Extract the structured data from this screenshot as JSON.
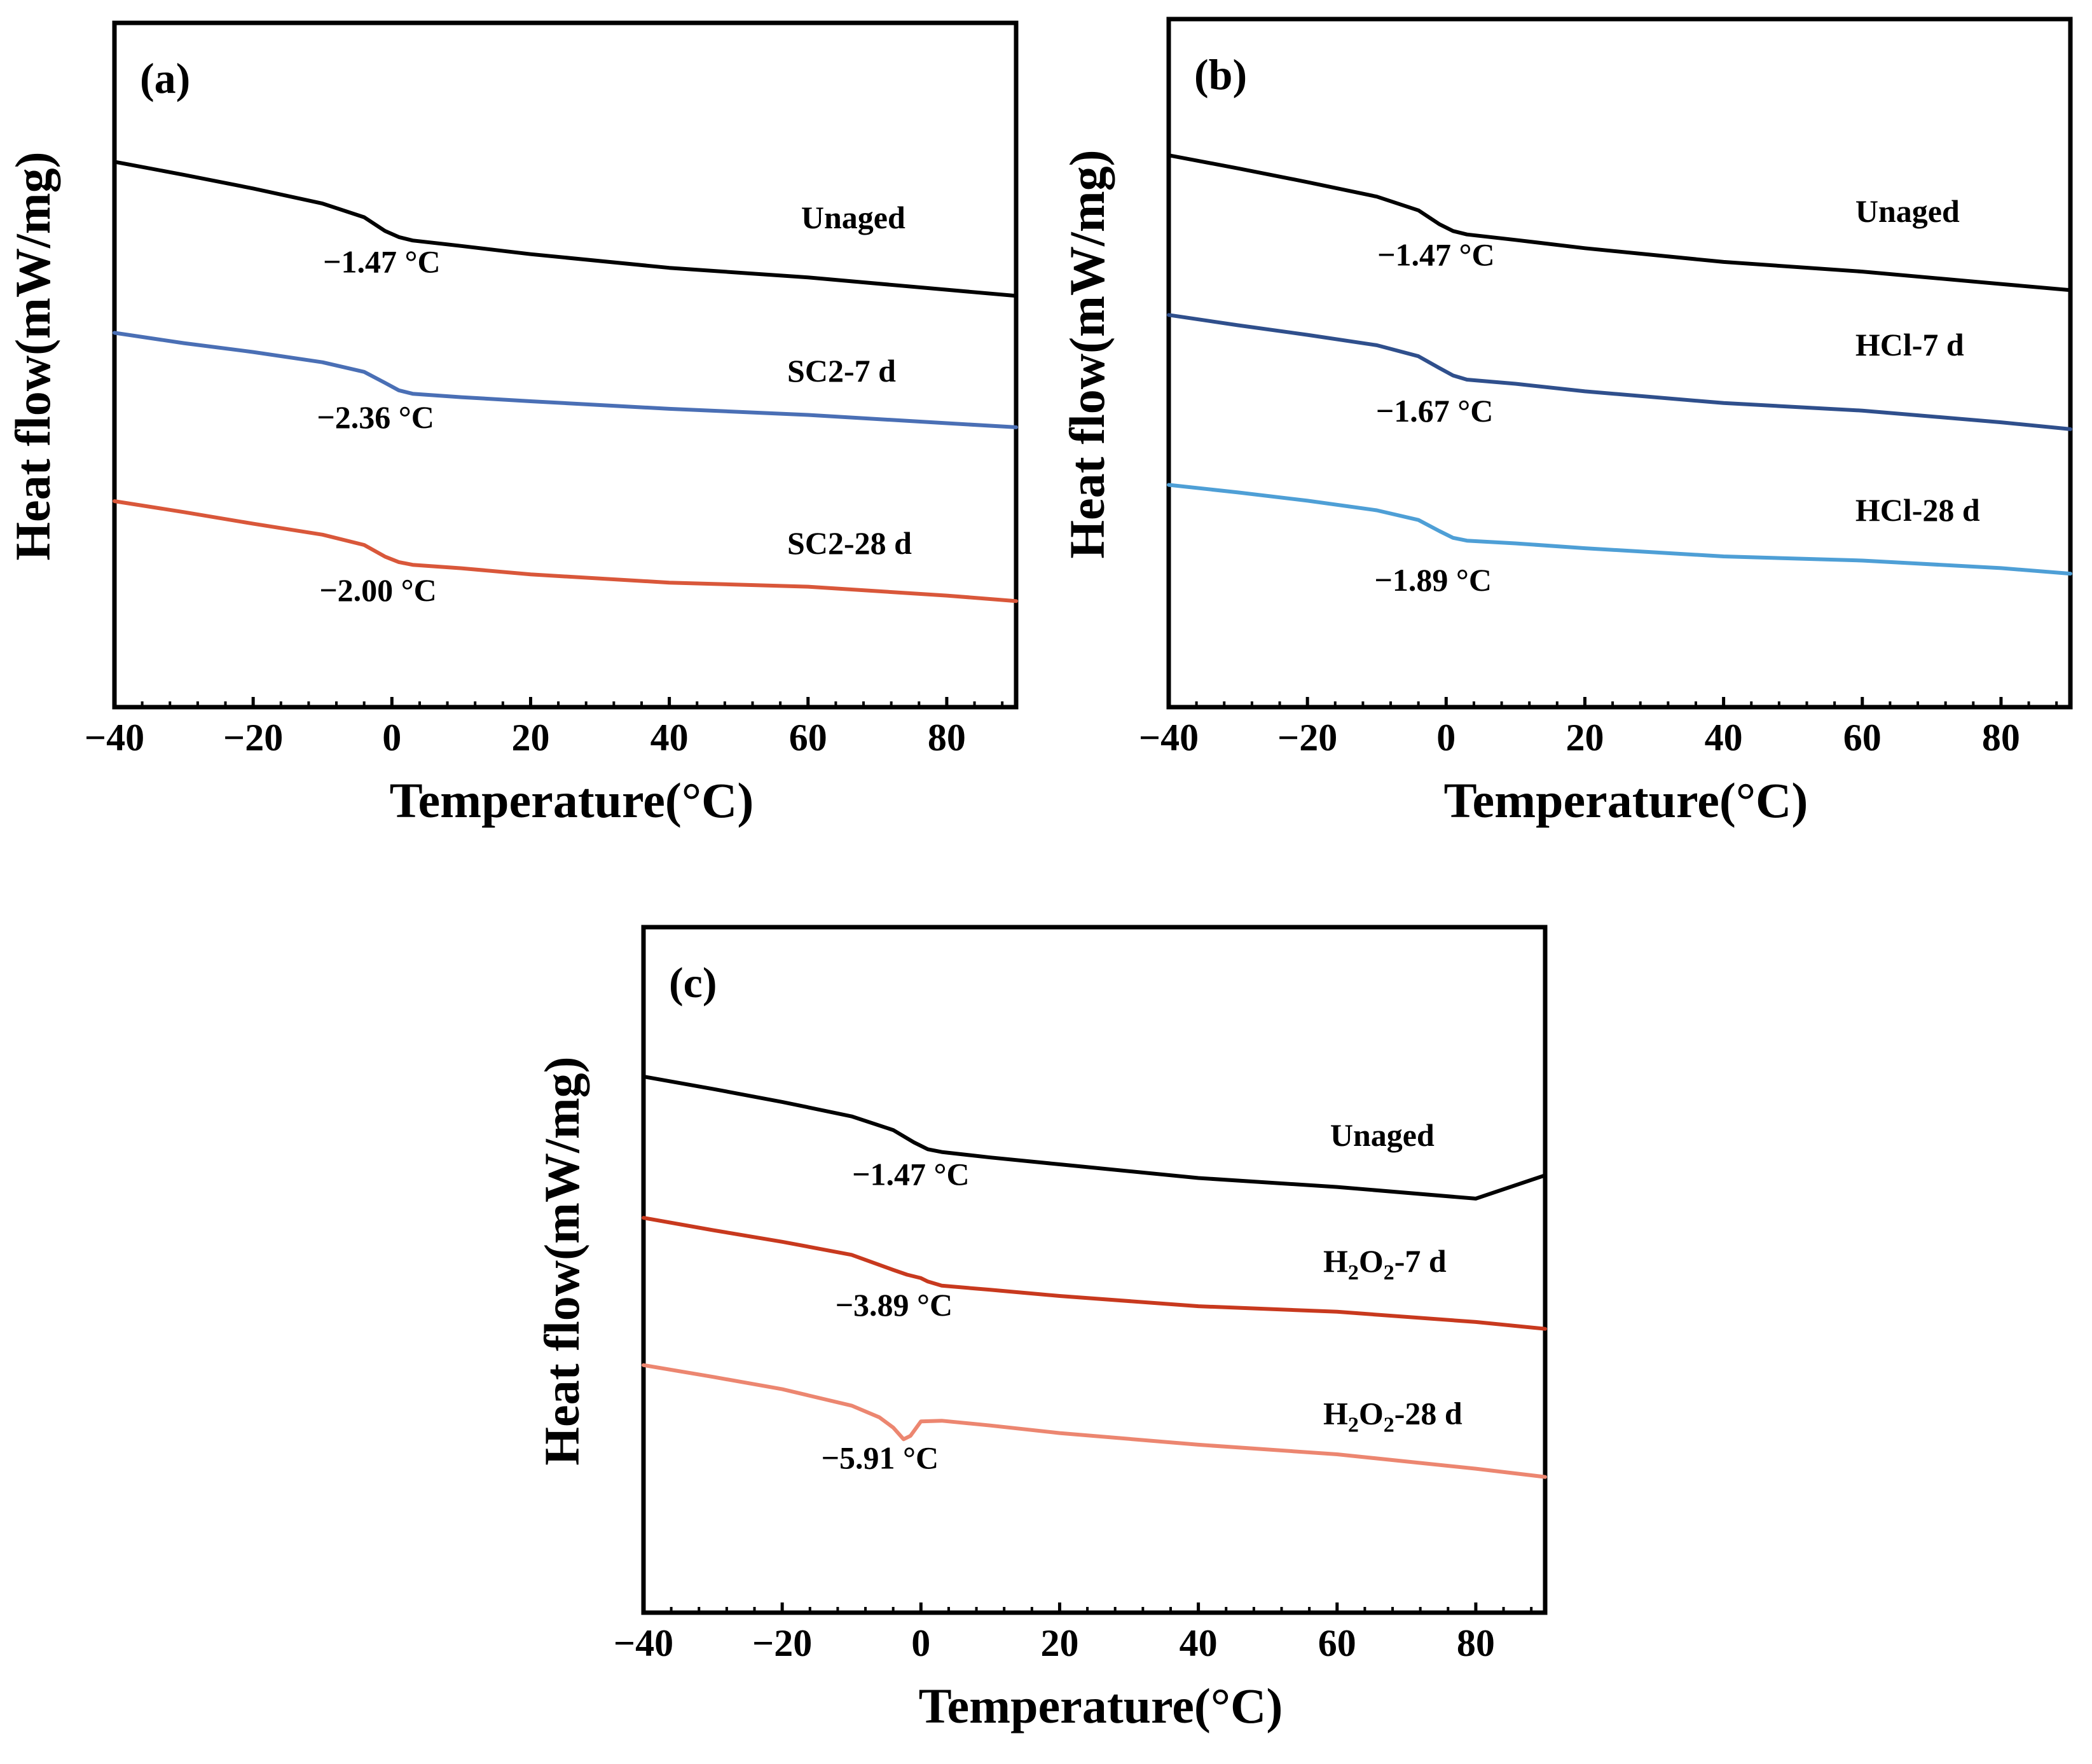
{
  "chart_data": [
    {
      "type": "line",
      "panel_label": "(a)",
      "xlabel": "Temperature(°C)",
      "ylabel": "Heat flow(mW/mg)",
      "xlim": [
        -40,
        90
      ],
      "xticks": [
        -40,
        -20,
        0,
        20,
        40,
        60,
        80
      ],
      "xtick_labels": [
        "−40",
        "−20",
        "0",
        "20",
        "40",
        "60",
        "80"
      ],
      "ylim": [
        0,
        100
      ],
      "series": [
        {
          "name": "Unaged",
          "label": "Unaged",
          "color": "#000000",
          "x": [
            -40,
            -30,
            -20,
            -10,
            -4,
            -1,
            1,
            3,
            10,
            20,
            40,
            60,
            80,
            90
          ],
          "y": [
            79.7,
            77.8,
            75.8,
            73.6,
            71.6,
            69.6,
            68.7,
            68.2,
            67.4,
            66.2,
            64.2,
            62.8,
            61.0,
            60.1
          ],
          "annotation": "−1.47 °C",
          "annotation_at": [
            -1.47,
            63.5
          ],
          "label_at": [
            59,
            70
          ]
        },
        {
          "name": "SC2-7 d",
          "label": "SC2-7 d",
          "color": "#4a6fb5",
          "x": [
            -40,
            -30,
            -20,
            -10,
            -4,
            -1,
            1,
            3,
            10,
            20,
            40,
            60,
            80,
            90
          ],
          "y": [
            54.7,
            53.2,
            51.9,
            50.4,
            49.0,
            47.4,
            46.3,
            45.8,
            45.3,
            44.7,
            43.6,
            42.7,
            41.5,
            40.9
          ],
          "annotation": "−2.36 °C",
          "annotation_at": [
            -2.36,
            40.8
          ],
          "label_at": [
            57,
            47.6
          ]
        },
        {
          "name": "SC2-28 d",
          "label": "SC2-28 d",
          "color": "#d9573a",
          "x": [
            -40,
            -30,
            -20,
            -10,
            -4,
            -1,
            1,
            3,
            10,
            20,
            40,
            60,
            80,
            90
          ],
          "y": [
            30.1,
            28.5,
            26.8,
            25.2,
            23.7,
            22.0,
            21.2,
            20.8,
            20.3,
            19.4,
            18.2,
            17.6,
            16.3,
            15.5
          ],
          "annotation": "−2.00 °C",
          "annotation_at": [
            -2.0,
            15.5
          ],
          "label_at": [
            57,
            22.4
          ]
        }
      ]
    },
    {
      "type": "line",
      "panel_label": "(b)",
      "xlabel": "Temperature(°C)",
      "ylabel": "Heat flow(mW/mg)",
      "xlim": [
        -40,
        90
      ],
      "xticks": [
        -40,
        -20,
        0,
        20,
        40,
        60,
        80
      ],
      "xtick_labels": [
        "−40",
        "−20",
        "0",
        "20",
        "40",
        "60",
        "80"
      ],
      "ylim": [
        0,
        100
      ],
      "series": [
        {
          "name": "Unaged",
          "label": "Unaged",
          "color": "#000000",
          "x": [
            -40,
            -30,
            -20,
            -10,
            -4,
            -1,
            1,
            3,
            10,
            20,
            40,
            60,
            80,
            90
          ],
          "y": [
            80.2,
            78.3,
            76.3,
            74.2,
            72.2,
            70.2,
            69.2,
            68.7,
            67.9,
            66.7,
            64.7,
            63.3,
            61.5,
            60.6
          ],
          "annotation": "−1.47 °C",
          "annotation_at": [
            -1.47,
            64.2
          ],
          "label_at": [
            59,
            70.5
          ]
        },
        {
          "name": "HCl-7 d",
          "label": "HCl-7 d",
          "color": "#2f4f8c",
          "x": [
            -40,
            -30,
            -20,
            -10,
            -4,
            -1,
            1,
            3,
            10,
            20,
            40,
            60,
            80,
            90
          ],
          "y": [
            57.0,
            55.5,
            54.1,
            52.6,
            51.0,
            49.3,
            48.2,
            47.6,
            47.0,
            45.9,
            44.2,
            43.1,
            41.4,
            40.4
          ],
          "annotation": "−1.67 °C",
          "annotation_at": [
            -1.67,
            41.5
          ],
          "label_at": [
            59,
            51.1
          ]
        },
        {
          "name": "HCl-28 d",
          "label": "HCl-28 d",
          "color": "#4e9fd6",
          "x": [
            -40,
            -30,
            -20,
            -10,
            -4,
            -1,
            1,
            3,
            10,
            20,
            40,
            60,
            80,
            90
          ],
          "y": [
            32.3,
            31.2,
            30.0,
            28.6,
            27.2,
            25.6,
            24.6,
            24.2,
            23.8,
            23.1,
            21.9,
            21.3,
            20.2,
            19.4
          ],
          "annotation": "−1.89 °C",
          "annotation_at": [
            -1.89,
            16.9
          ],
          "label_at": [
            59,
            27.1
          ]
        }
      ]
    },
    {
      "type": "line",
      "panel_label": "(c)",
      "xlabel": "Temperature(°C)",
      "ylabel": "Heat flow(mW/mg)",
      "xlim": [
        -40,
        90
      ],
      "xticks": [
        -40,
        -20,
        0,
        20,
        40,
        60,
        80
      ],
      "xtick_labels": [
        "−40",
        "−20",
        "0",
        "20",
        "40",
        "60",
        "80"
      ],
      "ylim": [
        0,
        100
      ],
      "series": [
        {
          "name": "Unaged",
          "label": "Unaged",
          "color": "#000000",
          "x": [
            -40,
            -30,
            -20,
            -10,
            -4,
            -1,
            1,
            3,
            10,
            20,
            40,
            60,
            80,
            90
          ],
          "y": [
            78.2,
            76.4,
            74.5,
            72.4,
            70.4,
            68.6,
            67.6,
            67.2,
            66.4,
            65.4,
            63.4,
            62.1,
            60.4,
            63.8
          ],
          "annotation": "−1.47 °C",
          "annotation_at": [
            -1.47,
            62.4
          ],
          "label_at": [
            59,
            68.1
          ]
        },
        {
          "name": "H2O2-7 d",
          "label_parts": [
            "H",
            "2",
            "O",
            "2",
            "-7 d"
          ],
          "color": "#c8391e",
          "x": [
            -40,
            -30,
            -20,
            -10,
            -4,
            -2,
            0,
            1,
            3,
            10,
            20,
            40,
            60,
            80,
            90
          ],
          "y": [
            57.6,
            55.8,
            54.1,
            52.2,
            50.0,
            49.3,
            48.8,
            48.3,
            47.7,
            47.1,
            46.2,
            44.7,
            43.9,
            42.4,
            41.4
          ],
          "annotation": "−3.89 °C",
          "annotation_at": [
            -3.89,
            43.3
          ],
          "label_at": [
            58,
            49.7
          ]
        },
        {
          "name": "H2O2-28 d",
          "label_parts": [
            "H",
            "2",
            "O",
            "2",
            "-28 d"
          ],
          "color": "#ec8670",
          "x": [
            -40,
            -30,
            -20,
            -10,
            -6,
            -4,
            -2.5,
            -1.5,
            0,
            3,
            10,
            20,
            40,
            60,
            80,
            90
          ],
          "y": [
            36.1,
            34.4,
            32.6,
            30.2,
            28.5,
            27.0,
            25.3,
            25.8,
            27.9,
            28.0,
            27.3,
            26.2,
            24.5,
            23.1,
            21.0,
            19.8
          ],
          "annotation": "−5.91 °C",
          "annotation_at": [
            -5.91,
            21.0
          ],
          "label_at": [
            58,
            27.5
          ]
        }
      ]
    }
  ]
}
